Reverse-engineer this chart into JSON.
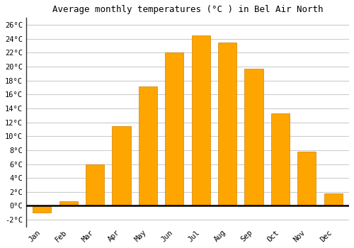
{
  "title": "Average monthly temperatures (°C ) in Bel Air North",
  "months": [
    "Jan",
    "Feb",
    "Mar",
    "Apr",
    "May",
    "Jun",
    "Jul",
    "Aug",
    "Sep",
    "Oct",
    "Nov",
    "Dec"
  ],
  "values": [
    -1.0,
    0.7,
    6.0,
    11.5,
    17.2,
    22.0,
    24.5,
    23.5,
    19.7,
    13.3,
    7.8,
    1.8
  ],
  "bar_color": "#FFA500",
  "bar_edge_color": "#CC8400",
  "ylim": [
    -3.0,
    27.0
  ],
  "yticks": [
    -2,
    0,
    2,
    4,
    6,
    8,
    10,
    12,
    14,
    16,
    18,
    20,
    22,
    24,
    26
  ],
  "ytick_labels": [
    "-2°C",
    "0°C",
    "2°C",
    "4°C",
    "6°C",
    "8°C",
    "10°C",
    "12°C",
    "14°C",
    "16°C",
    "18°C",
    "20°C",
    "22°C",
    "24°C",
    "26°C"
  ],
  "background_color": "#ffffff",
  "grid_color": "#cccccc",
  "title_fontsize": 9,
  "tick_fontsize": 7.5,
  "bar_width": 0.7
}
